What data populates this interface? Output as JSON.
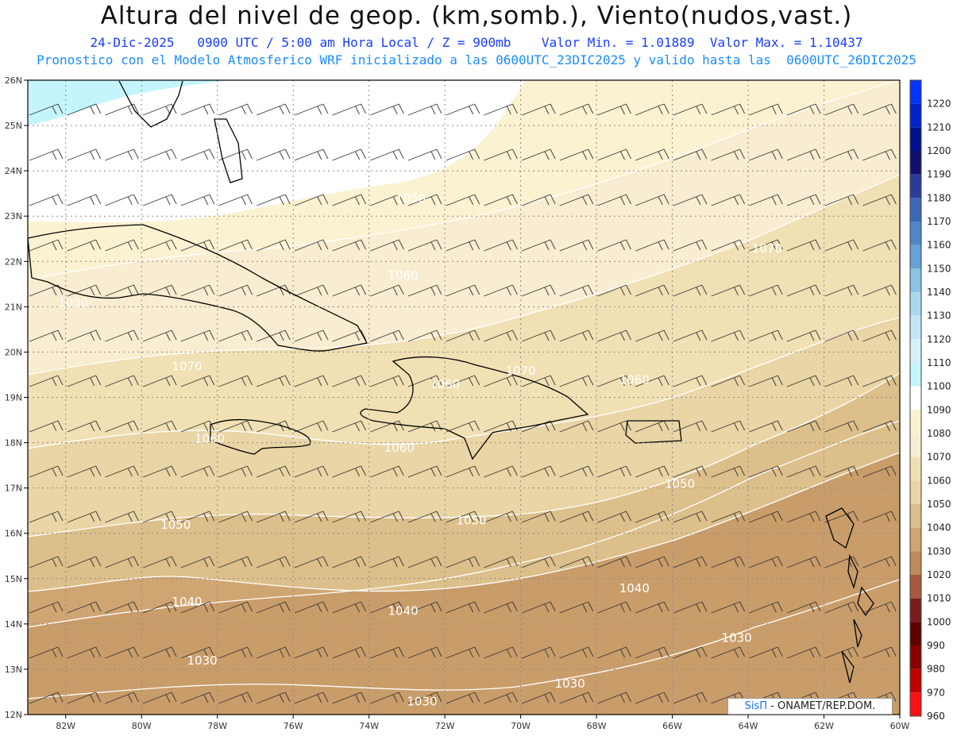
{
  "header": {
    "title": "Altura del nivel de geop. (km,somb.), Viento(nudos,vast.)",
    "date": "24-Dic-2025",
    "time": "0900 UTC / 5:00 am Hora Local / Z = 900mb",
    "min_label": "Valor Min. = 1.01889",
    "max_label": "Valor Max. = 1.10437",
    "forecast": "Pronostico con el Modelo Atmosferico WRF inicializado a las 0600UTC_23DIC2025 y valido hasta las  0600UTC_26DIC2025"
  },
  "map": {
    "lon_range": [
      -83,
      -60
    ],
    "lat_range": [
      12,
      26
    ],
    "lon_labels": [
      "82W",
      "80W",
      "78W",
      "76W",
      "74W",
      "72W",
      "70W",
      "68W",
      "66W",
      "64W",
      "62W",
      "60W"
    ],
    "lat_labels": [
      "12N",
      "13N",
      "14N",
      "15N",
      "16N",
      "17N",
      "18N",
      "19N",
      "20N",
      "21N",
      "22N",
      "23N",
      "24N",
      "25N",
      "26N"
    ],
    "contour_labels": [
      {
        "text": "1030",
        "lon": -81.8,
        "lat": 21.0
      },
      {
        "text": "1070",
        "lon": -78.8,
        "lat": 19.6
      },
      {
        "text": "1060",
        "lon": -73.1,
        "lat": 21.6
      },
      {
        "text": "1060",
        "lon": -72.0,
        "lat": 19.2
      },
      {
        "text": "1070",
        "lon": -70.0,
        "lat": 19.5
      },
      {
        "text": "1060",
        "lon": -67.0,
        "lat": 19.3
      },
      {
        "text": "1070",
        "lon": -63.5,
        "lat": 22.2
      },
      {
        "text": "1060",
        "lon": -78.2,
        "lat": 18.0
      },
      {
        "text": "1060",
        "lon": -73.2,
        "lat": 17.8
      },
      {
        "text": "1050",
        "lon": -79.1,
        "lat": 16.1
      },
      {
        "text": "1050",
        "lon": -71.3,
        "lat": 16.2
      },
      {
        "text": "1050",
        "lon": -65.8,
        "lat": 17.0
      },
      {
        "text": "1040",
        "lon": -78.8,
        "lat": 14.4
      },
      {
        "text": "1040",
        "lon": -73.1,
        "lat": 14.2
      },
      {
        "text": "1040",
        "lon": -67.0,
        "lat": 14.7
      },
      {
        "text": "1030",
        "lon": -78.4,
        "lat": 13.1
      },
      {
        "text": "1030",
        "lon": -68.7,
        "lat": 12.6
      },
      {
        "text": "1030",
        "lon": -72.6,
        "lat": 12.2
      },
      {
        "text": "1030",
        "lon": -64.3,
        "lat": 13.6
      },
      {
        "text": "1050",
        "lon": -72.9,
        "lat": 23.3
      }
    ]
  },
  "colorbar": {
    "levels": [
      {
        "label": "1220",
        "color": "#0033ff"
      },
      {
        "label": "1210",
        "color": "#0022cc"
      },
      {
        "label": "1200",
        "color": "#00108f"
      },
      {
        "label": "1190",
        "color": "#12106e"
      },
      {
        "label": "1180",
        "color": "#2a3c9a"
      },
      {
        "label": "1170",
        "color": "#3c68b4"
      },
      {
        "label": "1160",
        "color": "#4f86c6"
      },
      {
        "label": "1150",
        "color": "#66a2d6"
      },
      {
        "label": "1140",
        "color": "#8cc2e6"
      },
      {
        "label": "1130",
        "color": "#aad8ee"
      },
      {
        "label": "1120",
        "color": "#c3e6f4"
      },
      {
        "label": "1110",
        "color": "#d6f0f8"
      },
      {
        "label": "1100",
        "color": "#c4f5fc"
      },
      {
        "label": "1090",
        "color": "#ffffff"
      },
      {
        "label": "1080",
        "color": "#fbf2d2"
      },
      {
        "label": "1070",
        "color": "#f8edd0"
      },
      {
        "label": "1060",
        "color": "#f1e0b4"
      },
      {
        "label": "1050",
        "color": "#e9d5a5"
      },
      {
        "label": "1040",
        "color": "#dcbf8a"
      },
      {
        "label": "1030",
        "color": "#cfa572"
      },
      {
        "label": "1020",
        "color": "#bf8a5a"
      },
      {
        "label": "1010",
        "color": "#a85a3e"
      },
      {
        "label": "1000",
        "color": "#7a1c1c"
      },
      {
        "label": "990",
        "color": "#5e0000"
      },
      {
        "label": "980",
        "color": "#8a0000"
      },
      {
        "label": "970",
        "color": "#c00000"
      },
      {
        "label": "960",
        "color": "#ff1010"
      }
    ]
  },
  "credit": {
    "brand": "SisΠ",
    "text": " - ONAMET/REP.DOM."
  }
}
